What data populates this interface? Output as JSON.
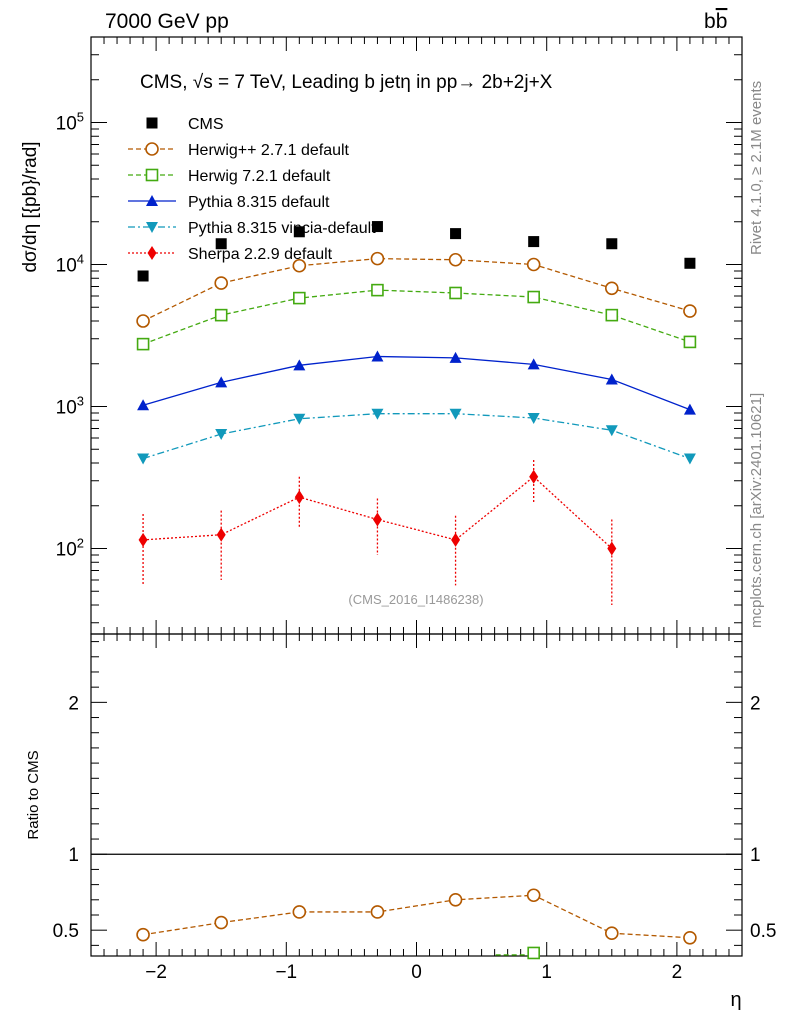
{
  "header": {
    "left": "7000 GeV pp",
    "right": "b",
    "right_bar": "b"
  },
  "side": {
    "rivet": "Rivet 4.1.0, ≥ 2.1M events",
    "mcplots": "mcplots.cern.ch [arXiv:2401.10621]"
  },
  "title": {
    "pre": "CMS, ",
    "sqrt": "√s",
    "post": " = 7 TeV, Leading b jetη in pp→  2b+2j+X"
  },
  "watermark": "(CMS_2016_I1486238)",
  "chart_data": [
    {
      "type": "line",
      "panel": "main",
      "ylabel": "dσ/dη [{pb}/rad]",
      "yscale": "log",
      "ylim": [
        25,
        400000
      ],
      "xlim": [
        -2.5,
        2.5
      ],
      "ytick_labels": [
        "10^2",
        "10^3",
        "10^4",
        "10^5"
      ],
      "x": [
        -2.1,
        -1.5,
        -0.9,
        -0.3,
        0.3,
        0.9,
        1.5,
        2.1
      ],
      "series": [
        {
          "name": "CMS",
          "marker": "square",
          "color": "#000000",
          "style": "none",
          "values": [
            8300,
            14000,
            17000,
            18500,
            16500,
            14500,
            14000,
            10200
          ]
        },
        {
          "name": "Herwig++ 2.7.1 default",
          "marker": "circle-open",
          "color": "#b35900",
          "style": "dashed",
          "values": [
            4000,
            7400,
            9800,
            11000,
            10800,
            10000,
            6800,
            4700
          ]
        },
        {
          "name": "Herwig 7.2.1 default",
          "marker": "square-open",
          "color": "#44aa11",
          "style": "dashed",
          "values": [
            2750,
            4400,
            5800,
            6600,
            6300,
            5900,
            4400,
            2850
          ]
        },
        {
          "name": "Pythia 8.315 default",
          "marker": "triangle-up",
          "color": "#0022cc",
          "style": "solid",
          "values": [
            1020,
            1480,
            1950,
            2250,
            2200,
            1980,
            1550,
            950
          ]
        },
        {
          "name": "Pythia 8.315 vincia-default",
          "marker": "triangle-down",
          "color": "#1199bb",
          "style": "dashdot",
          "values": [
            430,
            640,
            820,
            890,
            890,
            830,
            680,
            430
          ]
        },
        {
          "name": "Sherpa 2.2.9 default",
          "marker": "diamond",
          "color": "#ee0000",
          "style": "dotted",
          "x": [
            -2.1,
            -1.5,
            -0.9,
            -0.3,
            0.3,
            0.9,
            1.5
          ],
          "values": [
            115,
            125,
            230,
            160,
            115,
            320,
            100
          ],
          "err_up": [
            175,
            185,
            320,
            225,
            170,
            420,
            160
          ],
          "err_down": [
            55,
            60,
            140,
            90,
            55,
            210,
            40
          ]
        }
      ]
    },
    {
      "type": "line",
      "panel": "ratio",
      "ylabel": "Ratio to CMS",
      "ylim": [
        0.33,
        2.45
      ],
      "xlim": [
        -2.5,
        2.5
      ],
      "xlabel": "η",
      "ytick_labels": [
        "0.5",
        "1",
        "2"
      ],
      "xtick_labels": [
        "−2",
        "−1",
        "0",
        "1",
        "2"
      ],
      "series": [
        {
          "name": "Herwig++ 2.7.1 default",
          "marker": "circle-open",
          "color": "#b35900",
          "style": "dashed",
          "x": [
            -2.1,
            -1.5,
            -0.9,
            -0.3,
            0.3,
            0.9,
            1.5,
            2.1
          ],
          "values": [
            0.47,
            0.55,
            0.62,
            0.62,
            0.7,
            0.73,
            0.48,
            0.45
          ]
        },
        {
          "name": "Herwig 7.2.1 default",
          "marker": "square-open",
          "color": "#44aa11",
          "style": "dashed",
          "x": [
            0.9
          ],
          "values": [
            0.35
          ]
        }
      ]
    }
  ]
}
